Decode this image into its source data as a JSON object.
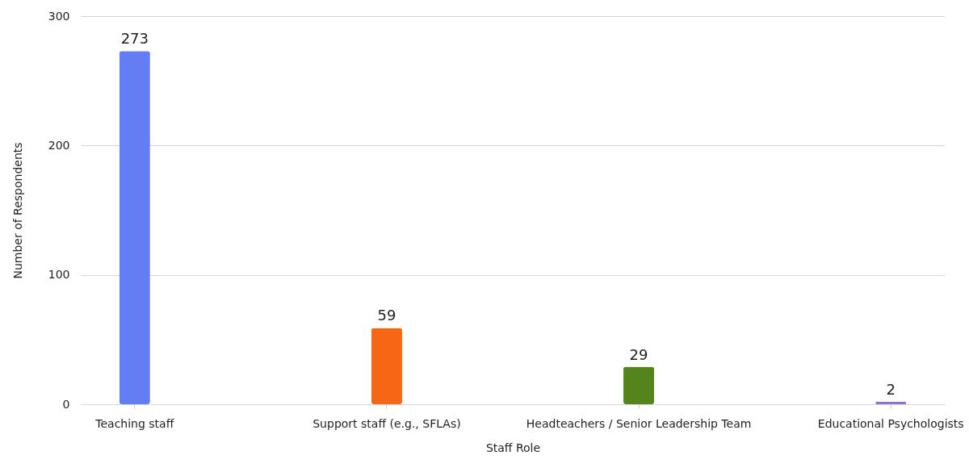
{
  "chart_data": {
    "type": "bar",
    "xlabel": "Staff Role",
    "ylabel": "Number of Respondents",
    "categories": [
      "Teaching staff",
      "Support staff (e.g., SFLAs)",
      "Headteachers / Senior Leadership Team",
      "Educational Psychologists"
    ],
    "values": [
      273,
      59,
      29,
      2
    ],
    "colors": [
      "#627ef2",
      "#f76614",
      "#55841c",
      "#9070d8"
    ],
    "ylim": [
      0,
      300
    ],
    "yticks": [
      0,
      100,
      200,
      300
    ],
    "grid": "y",
    "data_labels": true
  }
}
